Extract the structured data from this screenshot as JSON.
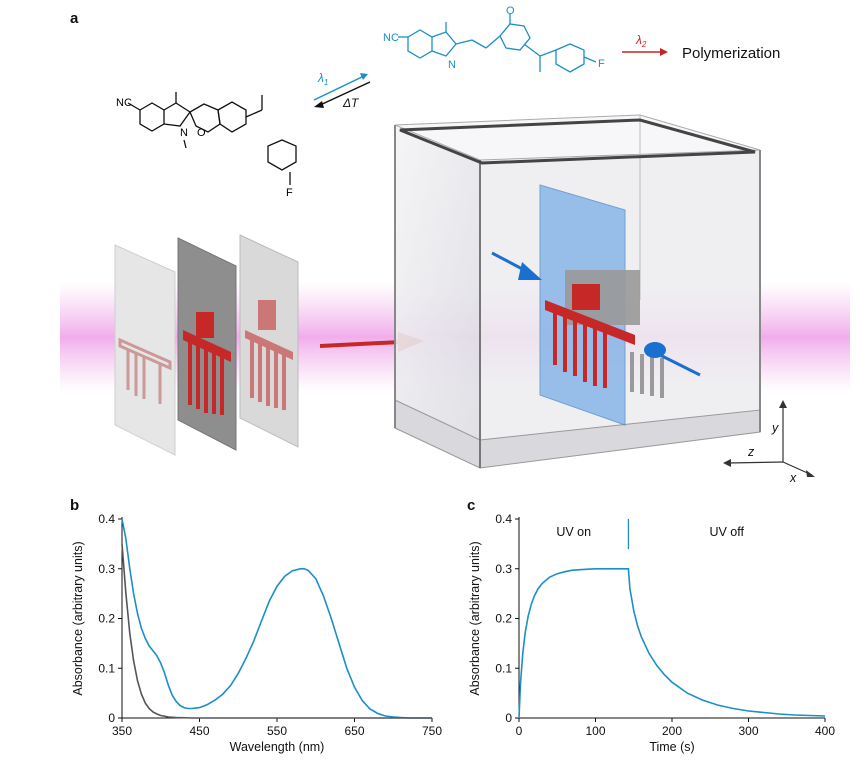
{
  "panel_a": {
    "letter": "a",
    "lambda1": "λ",
    "lambda1_sub": "1",
    "lambda2": "λ",
    "lambda2_sub": "2",
    "delta_t": "ΔT",
    "polymerization": "Polymerization",
    "mol1": {
      "nc": "NC",
      "n": "N",
      "o": "O",
      "f": "F"
    },
    "mol2": {
      "nc": "NC",
      "n": "N",
      "o": "O",
      "f": "F"
    },
    "axes": {
      "x": "x",
      "y": "y",
      "z": "z"
    },
    "colors": {
      "blue": "#1a8fc9",
      "red": "#cc2222",
      "pink": "#f0a8e8"
    }
  },
  "chart_data": [
    {
      "panel": "b",
      "type": "line",
      "xlabel": "Wavelength (nm)",
      "ylabel": "Absorbance (arbitrary units)",
      "xlim": [
        350,
        750
      ],
      "ylim": [
        0,
        0.4
      ],
      "xticks": [
        "350",
        "450",
        "550",
        "650",
        "750"
      ],
      "yticks": [
        "0",
        "0.1",
        "0.2",
        "0.3",
        "0.4"
      ],
      "series": [
        {
          "color": "#1a8fc9",
          "x": [
            350,
            355,
            360,
            365,
            370,
            375,
            380,
            385,
            390,
            395,
            400,
            405,
            410,
            415,
            420,
            425,
            430,
            435,
            440,
            445,
            450,
            460,
            470,
            480,
            490,
            500,
            510,
            520,
            530,
            540,
            550,
            560,
            570,
            580,
            585,
            590,
            600,
            610,
            620,
            630,
            640,
            650,
            660,
            670,
            680,
            690,
            700,
            710,
            720,
            750
          ],
          "y": [
            0.4,
            0.36,
            0.3,
            0.25,
            0.21,
            0.18,
            0.16,
            0.145,
            0.135,
            0.125,
            0.11,
            0.09,
            0.065,
            0.045,
            0.033,
            0.025,
            0.021,
            0.019,
            0.019,
            0.02,
            0.021,
            0.027,
            0.036,
            0.048,
            0.065,
            0.09,
            0.12,
            0.155,
            0.195,
            0.235,
            0.265,
            0.285,
            0.296,
            0.3,
            0.3,
            0.297,
            0.28,
            0.245,
            0.2,
            0.15,
            0.1,
            0.062,
            0.035,
            0.018,
            0.009,
            0.004,
            0.002,
            0.001,
            0.0,
            0.0
          ]
        },
        {
          "color": "#555555",
          "x": [
            350,
            355,
            360,
            365,
            370,
            375,
            380,
            385,
            390,
            395,
            400,
            410,
            420,
            440,
            460,
            500,
            600,
            750
          ],
          "y": [
            0.35,
            0.25,
            0.17,
            0.115,
            0.075,
            0.048,
            0.03,
            0.019,
            0.012,
            0.008,
            0.005,
            0.002,
            0.001,
            0.0,
            0.0,
            0.0,
            0.0,
            0.0
          ]
        }
      ]
    },
    {
      "panel": "c",
      "type": "line",
      "xlabel": "Time (s)",
      "ylabel": "Absorbance (arbitrary units)",
      "xlim": [
        0,
        400
      ],
      "ylim": [
        0,
        0.4
      ],
      "xticks": [
        "0",
        "100",
        "200",
        "300",
        "400"
      ],
      "yticks": [
        "0",
        "0.1",
        "0.2",
        "0.3",
        "0.4"
      ],
      "annotations": {
        "uv_on": "UV on",
        "uv_off": "UV off",
        "switch_time": 143
      },
      "series": [
        {
          "color": "#1a8fc9",
          "x": [
            0,
            2,
            5,
            8,
            12,
            16,
            20,
            25,
            30,
            40,
            50,
            60,
            70,
            80,
            90,
            100,
            110,
            120,
            130,
            143,
            145,
            150,
            155,
            160,
            170,
            180,
            190,
            200,
            220,
            240,
            260,
            280,
            300,
            320,
            340,
            360,
            380,
            400
          ],
          "y": [
            0.0,
            0.07,
            0.13,
            0.17,
            0.205,
            0.228,
            0.245,
            0.26,
            0.27,
            0.283,
            0.29,
            0.294,
            0.297,
            0.298,
            0.299,
            0.3,
            0.3,
            0.3,
            0.3,
            0.3,
            0.26,
            0.215,
            0.185,
            0.163,
            0.13,
            0.106,
            0.087,
            0.072,
            0.05,
            0.036,
            0.026,
            0.019,
            0.014,
            0.011,
            0.008,
            0.006,
            0.005,
            0.004
          ]
        }
      ]
    }
  ]
}
